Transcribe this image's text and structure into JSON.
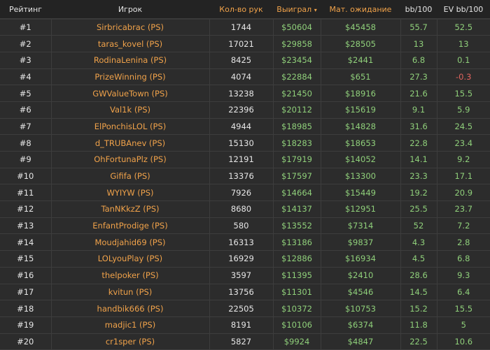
{
  "headers": {
    "rank": "Рейтинг",
    "player": "Игрок",
    "hands": "Кол-во рук",
    "won": "Выиграл",
    "won_sort_icon": "▾",
    "ev": "Мат. ожидание",
    "bb100": "bb/100",
    "evbb100": "EV bb/100"
  },
  "colors": {
    "accent": "#f0a24a",
    "positive": "#8fcf7a",
    "negative": "#e0645e"
  },
  "rows": [
    [
      "#1",
      "Sirbricabrac (PS)",
      "1744",
      "$50604",
      "$45458",
      "55.7",
      "52.5"
    ],
    [
      "#2",
      "taras_kovel (PS)",
      "17021",
      "$29858",
      "$28505",
      "13",
      "13"
    ],
    [
      "#3",
      "RodinaLenina (PS)",
      "8425",
      "$23454",
      "$2441",
      "6.8",
      "0.1"
    ],
    [
      "#4",
      "PrizeWinning (PS)",
      "4074",
      "$22884",
      "$651",
      "27.3",
      "-0.3"
    ],
    [
      "#5",
      "GWValueTown (PS)",
      "13238",
      "$21450",
      "$18916",
      "21.6",
      "15.5"
    ],
    [
      "#6",
      "Val1k (PS)",
      "22396",
      "$20112",
      "$15619",
      "9.1",
      "5.9"
    ],
    [
      "#7",
      "ElPonchisLOL (PS)",
      "4944",
      "$18985",
      "$14828",
      "31.6",
      "24.5"
    ],
    [
      "#8",
      "d_TRUBAnev (PS)",
      "15130",
      "$18283",
      "$18653",
      "22.8",
      "23.4"
    ],
    [
      "#9",
      "OhFortunaPlz (PS)",
      "12191",
      "$17919",
      "$14052",
      "14.1",
      "9.2"
    ],
    [
      "#10",
      "Gififa (PS)",
      "13376",
      "$17597",
      "$13300",
      "23.3",
      "17.1"
    ],
    [
      "#11",
      "WYIYW (PS)",
      "7926",
      "$14664",
      "$15449",
      "19.2",
      "20.9"
    ],
    [
      "#12",
      "TanNKkzZ (PS)",
      "8680",
      "$14137",
      "$12951",
      "25.5",
      "23.7"
    ],
    [
      "#13",
      "EnfantProdige (PS)",
      "580",
      "$13552",
      "$7314",
      "52",
      "7.2"
    ],
    [
      "#14",
      "Moudjahid69 (PS)",
      "16313",
      "$13186",
      "$9837",
      "4.3",
      "2.8"
    ],
    [
      "#15",
      "LOLyouPlay (PS)",
      "16929",
      "$12886",
      "$16934",
      "4.5",
      "6.8"
    ],
    [
      "#16",
      "thelpoker (PS)",
      "3597",
      "$11395",
      "$2410",
      "28.6",
      "9.3"
    ],
    [
      "#17",
      "kvitun (PS)",
      "13756",
      "$11301",
      "$4546",
      "14.5",
      "6.4"
    ],
    [
      "#18",
      "handbik666 (PS)",
      "22505",
      "$10372",
      "$10753",
      "15.2",
      "15.5"
    ],
    [
      "#19",
      "madjic1 (PS)",
      "8191",
      "$10106",
      "$6374",
      "11.8",
      "5"
    ],
    [
      "#20",
      "cr1sper (PS)",
      "5827",
      "$9924",
      "$4847",
      "22.5",
      "10.6"
    ]
  ]
}
